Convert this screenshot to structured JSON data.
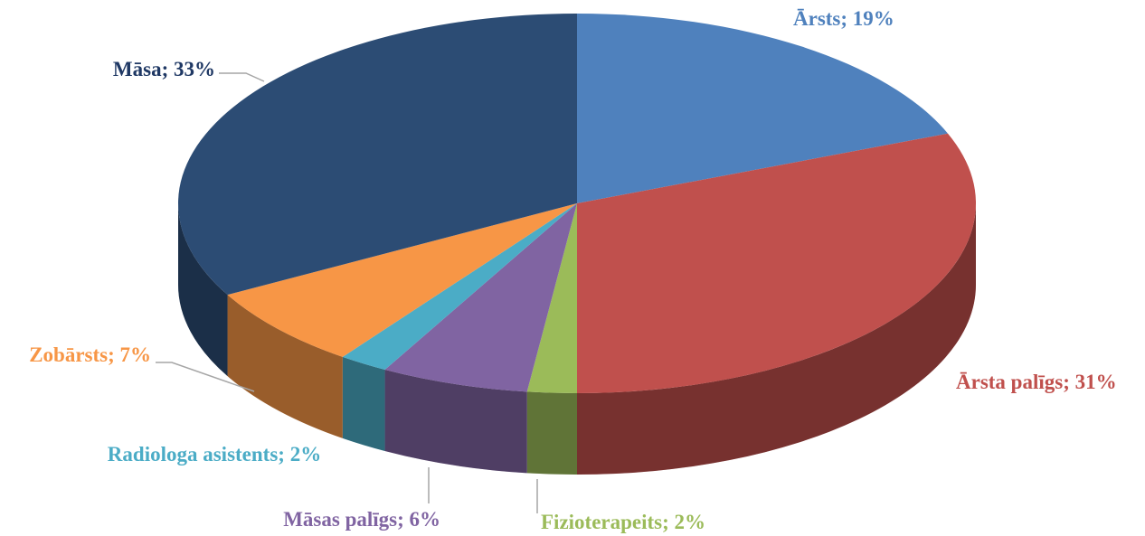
{
  "chart_data": {
    "type": "pie3d",
    "values": [
      19,
      31,
      2,
      6,
      2,
      7,
      33
    ],
    "value_labels": [
      "Ārsts; 19%",
      "Ārsta palīgs; 31%",
      "Fizioterapeits; 2%",
      "Māsas palīgs; 6%",
      "Radiologa asistents; 2%",
      "Zobārsts; 7%",
      "Māsa; 33%"
    ],
    "colors": [
      "#4f81bd",
      "#c0504d",
      "#9bbb59",
      "#8064a2",
      "#4bacc6",
      "#f79646",
      "#2c4c74"
    ],
    "label_colors": [
      "#4f81bd",
      "#c0504d",
      "#9bbb59",
      "#8064a2",
      "#4bacc6",
      "#f79646",
      "#1f3864"
    ]
  }
}
